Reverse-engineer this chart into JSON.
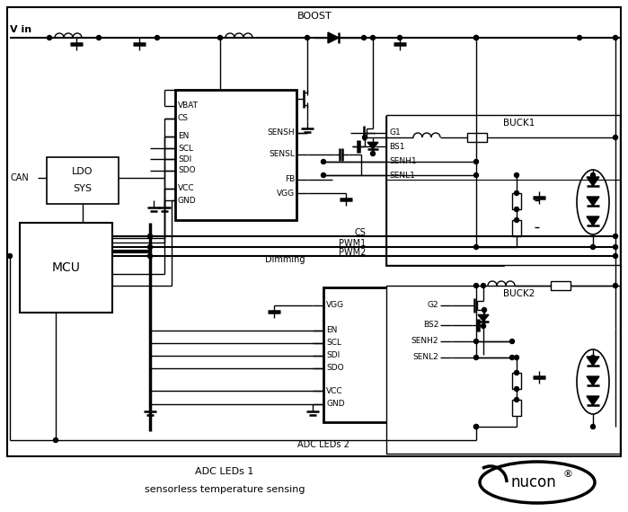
{
  "bg": "#ffffff",
  "lc": "#000000",
  "fig_w": 6.99,
  "fig_h": 5.7,
  "dpi": 100,
  "vin_label": "V in",
  "boost_label": "BOOST",
  "can_label": "CAN",
  "ldo_line1": "LDO",
  "ldo_line2": "SYS",
  "mcu_label": "MCU",
  "cs_label": "CS",
  "pwm1_label": "PWM1",
  "pwm2_label": "PWM2",
  "dimming_label": "Dimming",
  "adc_leds2_label": "ADC LEDs 2",
  "footer1": "ADC LEDs 1",
  "footer2": "sensorless temperature sensing",
  "nucon_label": "nucon",
  "reg_label": "®",
  "buck1_label": "BUCK1",
  "buck2_label": "BUCK2",
  "boost_ic_left_pins": [
    [
      "VBAT",
      118
    ],
    [
      "CS",
      132
    ],
    [
      "EN",
      152
    ],
    [
      "SCL",
      165
    ],
    [
      "SDI",
      177
    ],
    [
      "SDO",
      190
    ],
    [
      "VCC",
      210
    ],
    [
      "GND",
      223
    ]
  ],
  "boost_ic_right_pins": [
    [
      "SENSH",
      148
    ],
    [
      "SENSL",
      172
    ],
    [
      "FB",
      200
    ],
    [
      "VGG",
      215
    ]
  ],
  "buck1_ic_left_pins": [
    [
      "G1",
      148
    ],
    [
      "BS1",
      163
    ],
    [
      "SENH1",
      180
    ],
    [
      "SENL1",
      195
    ]
  ],
  "buck2_ic_left_pins": [
    [
      "VGG",
      340
    ],
    [
      "EN",
      368
    ],
    [
      "SCL",
      382
    ],
    [
      "SDI",
      396
    ],
    [
      "SDO",
      410
    ],
    [
      "VCC",
      435
    ],
    [
      "GND",
      450
    ]
  ],
  "buck2_ic_right_pins": [
    [
      "G2",
      340
    ],
    [
      "BS2",
      362
    ],
    [
      "SENH2",
      380
    ],
    [
      "SENL2",
      398
    ]
  ]
}
